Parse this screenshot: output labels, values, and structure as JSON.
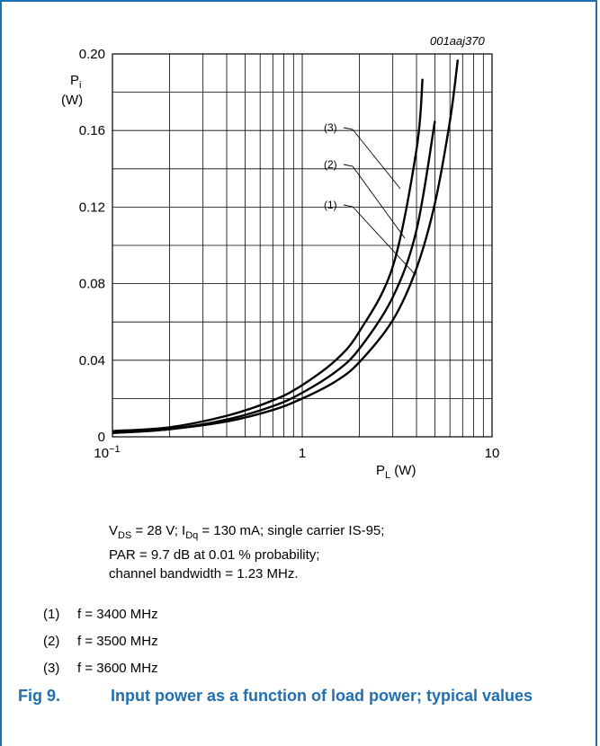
{
  "figure_code": "001aaj370",
  "caption": {
    "number": "Fig 9.",
    "title": "Input power as a function of load power; typical values"
  },
  "conditions": {
    "line1": {
      "vds": "V",
      "vds_sub": "DS",
      "vds_rest": " = 28 V; I",
      "idq_sub": "Dq",
      "rest": " = 130 mA; single carrier IS-95;"
    },
    "line2": "PAR = 9.7 dB at 0.01 % probability;",
    "line3": "channel bandwidth = 1.23 MHz."
  },
  "notes": [
    {
      "num": "(1)",
      "text": "f = 3400 MHz"
    },
    {
      "num": "(2)",
      "text": "f = 3500 MHz"
    },
    {
      "num": "(3)",
      "text": "f = 3600 MHz"
    }
  ],
  "chart_data": {
    "type": "line",
    "x_scale": "log",
    "xlim": [
      0.1,
      10
    ],
    "ylim": [
      0,
      0.2
    ],
    "x_ticks": [
      {
        "value": 0.1,
        "label": "10",
        "sup": "−1"
      },
      {
        "value": 1,
        "label": "1",
        "sup": ""
      },
      {
        "value": 10,
        "label": "10",
        "sup": ""
      }
    ],
    "y_ticks": [
      {
        "value": 0,
        "label": "0"
      },
      {
        "value": 0.04,
        "label": "0.04"
      },
      {
        "value": 0.08,
        "label": "0.08"
      },
      {
        "value": 0.12,
        "label": "0.12"
      },
      {
        "value": 0.16,
        "label": "0.16"
      },
      {
        "value": 0.2,
        "label": "0.20"
      }
    ],
    "ylabel": {
      "main": "P",
      "sub": "i",
      "unit": "(W)"
    },
    "xlabel": {
      "main": "P",
      "sub": "L",
      "unit": " (W)"
    },
    "grid": true,
    "series": [
      {
        "name": "(1)",
        "x": [
          0.1,
          0.2,
          0.4,
          0.7,
          1.0,
          1.5,
          2.0,
          3.0,
          4.0,
          5.0,
          6.0,
          6.6
        ],
        "y": [
          0.002,
          0.004,
          0.008,
          0.014,
          0.02,
          0.029,
          0.039,
          0.061,
          0.088,
          0.122,
          0.165,
          0.197
        ]
      },
      {
        "name": "(2)",
        "x": [
          0.1,
          0.2,
          0.4,
          0.7,
          1.0,
          1.5,
          2.0,
          3.0,
          4.0,
          5.0
        ],
        "y": [
          0.002,
          0.004,
          0.009,
          0.016,
          0.023,
          0.034,
          0.046,
          0.073,
          0.108,
          0.165
        ]
      },
      {
        "name": "(3)",
        "x": [
          0.1,
          0.2,
          0.4,
          0.7,
          1.0,
          1.5,
          2.0,
          3.0,
          4.0,
          4.3
        ],
        "y": [
          0.003,
          0.005,
          0.011,
          0.019,
          0.027,
          0.04,
          0.055,
          0.089,
          0.15,
          0.187
        ]
      }
    ]
  }
}
